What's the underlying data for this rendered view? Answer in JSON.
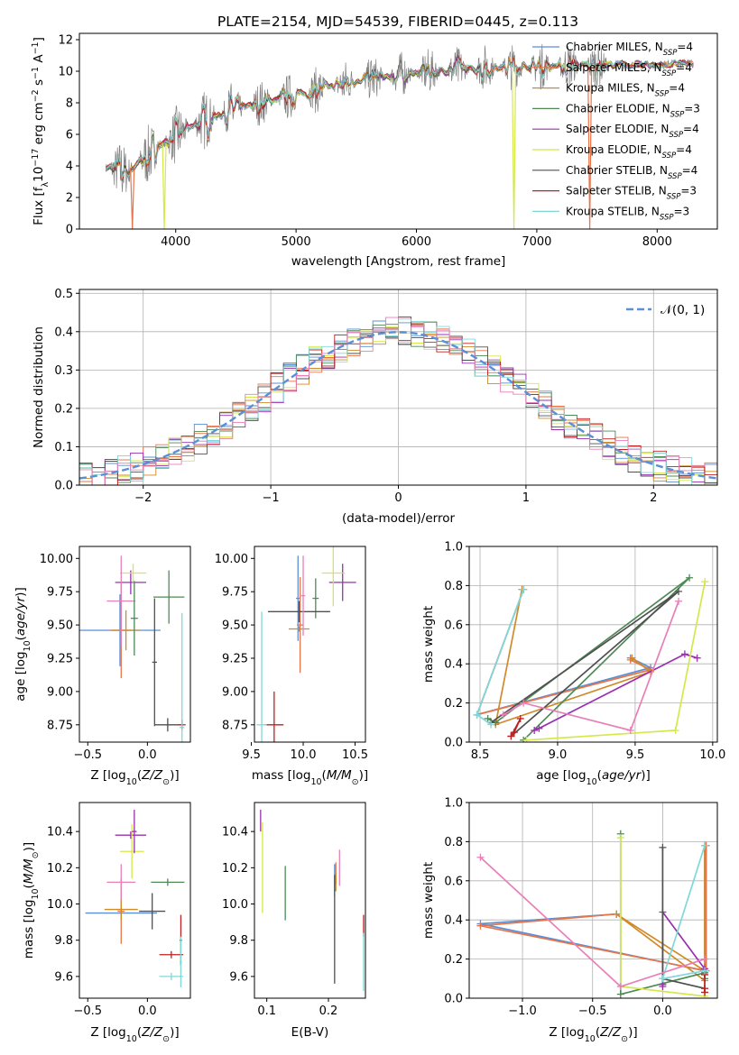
{
  "figure": {
    "title": "PLATE=2154, MJD=54539, FIBERID=0445, z=0.113",
    "models": [
      {
        "name": "Chabrier MILES, N$_{SSP}$=4",
        "label": "Chabrier MILES, N",
        "n": "=4",
        "color": "#5b8fd6"
      },
      {
        "name": "Salpeter MILES, N$_{SSP}$=4",
        "label": "Salpeter MILES, N",
        "n": "=4",
        "color": "#e8744a"
      },
      {
        "name": "Kroupa MILES, N$_{SSP}$=4",
        "label": "Kroupa MILES, N",
        "n": "=4",
        "color": "#d08a2a"
      },
      {
        "name": "Chabrier ELODIE, N$_{SSP}$=3",
        "label": "Chabrier ELODIE, N",
        "n": "=3",
        "color": "#4e8a56"
      },
      {
        "name": "Salpeter ELODIE, N$_{SSP}$=4",
        "label": "Salpeter ELODIE, N",
        "n": "=4",
        "color": "#9a30b0"
      },
      {
        "name": "Kroupa ELODIE, N$_{SSP}$=4",
        "label": "Kroupa ELODIE, N",
        "n": "=4",
        "color": "#d4e84a"
      },
      {
        "name": "Chabrier STELIB, N$_{SSP}$=4",
        "label": "Chabrier STELIB, N",
        "n": "=4",
        "color": "#505050"
      },
      {
        "name": "Salpeter STELIB, N$_{SSP}$=3",
        "label": "Salpeter STELIB, N",
        "n": "=3",
        "color": "#c02020"
      },
      {
        "name": "Kroupa STELIB, N$_{SSP}$=3",
        "label": "Kroupa STELIB, N",
        "n": "=3",
        "color": "#80d8d8"
      }
    ],
    "ssp_sub": "SSP",
    "extra_colors": {
      "pink": "#e87fb8",
      "data": "#808080",
      "gauss": "#5b8fd6"
    }
  },
  "chart_data": [
    {
      "id": "spectrum",
      "type": "line",
      "xlabel": "wavelength [Angstrom, rest frame]",
      "ylabel": "Flux [f$_\\lambda$10$^{-17}$ erg cm$^{-2}$ s$^{-1}$ A$^{-1}$]",
      "ylabel_parts": [
        "Flux [f",
        "λ",
        "10",
        "−17",
        " erg cm",
        "−2",
        " s",
        "−1",
        " A",
        "−1",
        "]"
      ],
      "xlim": [
        3200,
        8500
      ],
      "ylim": [
        0,
        12.4
      ],
      "xticks": [
        4000,
        5000,
        6000,
        7000,
        8000
      ],
      "yticks": [
        0,
        2,
        4,
        6,
        8,
        10,
        12
      ],
      "data_range": [
        3420,
        8300
      ],
      "continuum_knots": [
        [
          3420,
          3.9
        ],
        [
          3600,
          3.6
        ],
        [
          3700,
          4.2
        ],
        [
          3850,
          5.2
        ],
        [
          4000,
          5.9
        ],
        [
          4200,
          6.8
        ],
        [
          4500,
          7.6
        ],
        [
          5000,
          8.5
        ],
        [
          5500,
          9.4
        ],
        [
          6000,
          9.9
        ],
        [
          6500,
          10.2
        ],
        [
          7000,
          10.3
        ],
        [
          7500,
          10.4
        ],
        [
          8000,
          10.4
        ],
        [
          8300,
          10.5
        ]
      ],
      "noise": {
        "base": 0.7,
        "scale": 0.55,
        "quiet_above": 7600,
        "quiet_noise": 0.25
      },
      "dips": [
        {
          "x": 3640,
          "model": 1,
          "depth_to": 0
        },
        {
          "x": 3905,
          "model": 5,
          "depth_to": 0
        },
        {
          "x": 6810,
          "model": 5,
          "depth_to": 0
        },
        {
          "x": 7440,
          "model": 1,
          "depth_to": 0
        }
      ],
      "legend_position": "upper right"
    },
    {
      "id": "residuals",
      "type": "step",
      "xlabel": "(data-model)/error",
      "ylabel": "Normed distribution",
      "xlim": [
        -2.5,
        2.5
      ],
      "ylim": [
        0,
        0.51
      ],
      "xticks": [
        -2,
        -1,
        0,
        1,
        2
      ],
      "yticks": [
        0.0,
        0.1,
        0.2,
        0.3,
        0.4,
        0.5
      ],
      "bin_width": 0.1,
      "legend": [
        "$\\mathcal{N}(0,1)$"
      ],
      "legend_label": "𝒩(0, 1)",
      "legend_position": "upper right",
      "histogram_model": "standard normal with per-model scatter up to ±0.04",
      "grid": true
    },
    {
      "id": "age_vs_Z",
      "type": "scatter",
      "xlabel": "Z [log$_{10}$(Z/Z$_\\odot$)]",
      "ylabel": "age  [log$_{10}$(age/yr)]",
      "xlim": [
        -0.57,
        0.36
      ],
      "ylim": [
        8.62,
        10.09
      ],
      "xticks": [
        -0.5,
        0.0
      ],
      "yticks": [
        8.75,
        9.0,
        9.25,
        9.5,
        9.75,
        10.0
      ],
      "points": [
        {
          "m": 0,
          "x": -0.23,
          "y": 9.46,
          "ex": 0.34,
          "ey": 0.27
        },
        {
          "m": 1,
          "x": -0.22,
          "y": 9.46,
          "ex": 0.09,
          "ey": 0.36
        },
        {
          "m": 2,
          "x": -0.18,
          "y": 9.46,
          "ex": 0.12,
          "ey": 0.15
        },
        {
          "m": 3,
          "x": 0.18,
          "y": 9.71,
          "ex": 0.13,
          "ey": 0.2
        },
        {
          "m": 4,
          "x": -0.14,
          "y": 9.82,
          "ex": 0.13,
          "ey": 0.09
        },
        {
          "m": 5,
          "x": -0.12,
          "y": 9.89,
          "ex": 0.11,
          "ey": 0.07
        },
        {
          "m": 6,
          "x": 0.17,
          "y": 8.75,
          "ex": 0.11,
          "ey": 0.05
        },
        {
          "m": 7,
          "x": 0.29,
          "y": 8.75,
          "ex": 0.03,
          "ey": 0.04
        },
        {
          "m": 8,
          "x": 0.29,
          "y": 8.73,
          "ex": 0.02,
          "ey": 0.86
        },
        {
          "m": "pink",
          "x": -0.22,
          "y": 9.68,
          "ex": 0.12,
          "ey": 0.34
        },
        {
          "m": 3,
          "x": -0.11,
          "y": 9.55,
          "ex": 0.03,
          "ey": 0.28
        },
        {
          "m": 6,
          "x": 0.06,
          "y": 9.22,
          "ex": 0.02,
          "ey": 0.48
        }
      ]
    },
    {
      "id": "age_vs_mass",
      "type": "scatter",
      "xlabel": "mass [log$_{10}$(M/M$_\\odot$)]",
      "ylabel": "",
      "xlim": [
        9.53,
        10.6
      ],
      "ylim": [
        8.62,
        10.09
      ],
      "xticks": [
        9.5,
        10.0,
        10.5
      ],
      "yticks": [
        8.75,
        9.0,
        9.25,
        9.5,
        9.75,
        10.0
      ],
      "points": [
        {
          "m": 0,
          "x": 9.95,
          "y": 9.7,
          "ex": 0.02,
          "ey": 0.32
        },
        {
          "m": 1,
          "x": 9.97,
          "y": 9.5,
          "ex": 0.03,
          "ey": 0.36
        },
        {
          "m": 2,
          "x": 9.96,
          "y": 9.47,
          "ex": 0.1,
          "ey": 0.02
        },
        {
          "m": 3,
          "x": 10.12,
          "y": 9.7,
          "ex": 0.03,
          "ey": 0.15
        },
        {
          "m": 4,
          "x": 10.38,
          "y": 9.82,
          "ex": 0.13,
          "ey": 0.14
        },
        {
          "m": 5,
          "x": 10.29,
          "y": 9.89,
          "ex": 0.11,
          "ey": 0.25
        },
        {
          "m": 6,
          "x": 9.96,
          "y": 9.6,
          "ex": 0.3,
          "ey": 0.08
        },
        {
          "m": 7,
          "x": 9.72,
          "y": 8.75,
          "ex": 0.09,
          "ey": 0.25
        },
        {
          "m": 8,
          "x": 9.6,
          "y": 8.75,
          "ex": 0.05,
          "ey": 0.85
        },
        {
          "m": "pink",
          "x": 10.0,
          "y": 9.72,
          "ex": 0.02,
          "ey": 0.3
        }
      ]
    },
    {
      "id": "mass_weight_vs_age",
      "type": "line",
      "xlabel": "age  [log$_{10}$(age/yr)]",
      "ylabel": "mass weight",
      "xlim": [
        8.43,
        10.03
      ],
      "ylim": [
        0.0,
        1.0
      ],
      "xticks": [
        8.5,
        9.0,
        9.5,
        10.0
      ],
      "yticks": [
        0.0,
        0.2,
        0.4,
        0.6,
        0.8,
        1.0
      ],
      "grid": true,
      "series": [
        {
          "m": 0,
          "x": [
            8.78,
            8.48,
            9.6,
            9.47
          ],
          "y": [
            0.78,
            0.14,
            0.38,
            0.43
          ]
        },
        {
          "m": 1,
          "x": [
            8.78,
            8.48,
            9.6,
            9.47
          ],
          "y": [
            0.78,
            0.14,
            0.37,
            0.42
          ]
        },
        {
          "m": 2,
          "x": [
            8.77,
            8.6,
            9.6,
            9.48
          ],
          "y": [
            0.78,
            0.09,
            0.36,
            0.43
          ]
        },
        {
          "m": 3,
          "x": [
            8.78,
            9.85,
            8.6,
            8.55
          ],
          "y": [
            0.01,
            0.84,
            0.1,
            0.12
          ]
        },
        {
          "m": 4,
          "x": [
            9.9,
            9.82,
            8.88,
            8.85
          ],
          "y": [
            0.43,
            0.45,
            0.07,
            0.06
          ]
        },
        {
          "m": 5,
          "x": [
            8.8,
            9.76,
            9.95
          ],
          "y": [
            0.01,
            0.06,
            0.82
          ]
        },
        {
          "m": 6,
          "x": [
            8.7,
            9.78,
            8.57
          ],
          "y": [
            0.03,
            0.77,
            0.1
          ]
        },
        {
          "m": 7,
          "x": [
            8.7,
            8.76,
            8.72
          ],
          "y": [
            0.03,
            0.12,
            0.05
          ]
        },
        {
          "m": 8,
          "x": [
            8.78,
            8.48,
            8.57
          ],
          "y": [
            0.78,
            0.14,
            0.09
          ]
        },
        {
          "m": "pink",
          "x": [
            9.78,
            9.47,
            8.78,
            8.65
          ],
          "y": [
            0.72,
            0.06,
            0.2,
            0.14
          ]
        }
      ]
    },
    {
      "id": "mass_vs_Z",
      "type": "scatter",
      "xlabel": "Z [log$_{10}$(Z/Z$_\\odot$)]",
      "ylabel": "mass [log$_{10}$(M/M$_\\odot$)]",
      "xlim": [
        -0.57,
        0.36
      ],
      "ylim": [
        9.48,
        10.56
      ],
      "xticks": [
        -0.5,
        0.0
      ],
      "yticks": [
        9.6,
        9.8,
        10.0,
        10.2,
        10.4
      ],
      "points": [
        {
          "m": 0,
          "x": -0.22,
          "y": 9.95,
          "ex": 0.3,
          "ey": 0.02
        },
        {
          "m": 1,
          "x": -0.22,
          "y": 9.96,
          "ex": 0.03,
          "ey": 0.18
        },
        {
          "m": 2,
          "x": -0.22,
          "y": 9.97,
          "ex": 0.14,
          "ey": 0.06
        },
        {
          "m": 3,
          "x": 0.17,
          "y": 10.12,
          "ex": 0.14,
          "ey": 0.02
        },
        {
          "m": 4,
          "x": -0.14,
          "y": 10.38,
          "ex": 0.13,
          "ey": 0.02
        },
        {
          "m": 5,
          "x": -0.13,
          "y": 10.29,
          "ex": 0.1,
          "ey": 0.15
        },
        {
          "m": 6,
          "x": 0.04,
          "y": 9.96,
          "ex": 0.11,
          "ey": 0.1
        },
        {
          "m": 7,
          "x": 0.2,
          "y": 9.72,
          "ex": 0.1,
          "ey": 0.02
        },
        {
          "m": 8,
          "x": 0.2,
          "y": 9.6,
          "ex": 0.1,
          "ey": 0.02
        },
        {
          "m": "pink",
          "x": -0.22,
          "y": 10.12,
          "ex": 0.12,
          "ey": 0.1
        },
        {
          "m": 4,
          "x": -0.11,
          "y": 10.4,
          "ex": 0.02,
          "ey": 0.12
        },
        {
          "m": 7,
          "x": 0.28,
          "y": 9.8,
          "ex": 0.01,
          "ey": 0.14
        },
        {
          "m": 8,
          "x": 0.28,
          "y": 9.68,
          "ex": 0.01,
          "ey": 0.14
        }
      ]
    },
    {
      "id": "mass_vs_ebv",
      "type": "scatter",
      "xlabel": "E(B-V)",
      "ylabel": "",
      "xlim": [
        0.08,
        0.26
      ],
      "ylim": [
        9.48,
        10.56
      ],
      "xticks": [
        0.1,
        0.2
      ],
      "yticks": [
        9.6,
        9.8,
        10.0,
        10.2,
        10.4
      ],
      "points": [
        {
          "m": 0,
          "x": 0.21,
          "y": 10.13,
          "ey": 0.09
        },
        {
          "m": 1,
          "x": 0.212,
          "y": 10.17,
          "ey": 0.06
        },
        {
          "m": 2,
          "x": 0.212,
          "y": 10.12,
          "ey": 0.05
        },
        {
          "m": 3,
          "x": 0.13,
          "y": 10.06,
          "ey": 0.15
        },
        {
          "m": 4,
          "x": 0.09,
          "y": 10.46,
          "ey": 0.06
        },
        {
          "m": 5,
          "x": 0.093,
          "y": 10.2,
          "ey": 0.25
        },
        {
          "m": 6,
          "x": 0.21,
          "y": 9.86,
          "ey": 0.3
        },
        {
          "m": 7,
          "x": 0.257,
          "y": 9.88,
          "ey": 0.06
        },
        {
          "m": 8,
          "x": 0.257,
          "y": 9.68,
          "ey": 0.16
        },
        {
          "m": "pink",
          "x": 0.218,
          "y": 10.2,
          "ey": 0.1
        }
      ]
    },
    {
      "id": "mass_weight_vs_Z",
      "type": "line",
      "xlabel": "Z [log$_{10}$(Z/Z$_\\odot$)]",
      "ylabel": "mass weight",
      "xlim": [
        -1.38,
        0.39
      ],
      "ylim": [
        0.0,
        1.0
      ],
      "xticks": [
        -1.0,
        -0.5,
        0.0
      ],
      "yticks": [
        0.0,
        0.2,
        0.4,
        0.6,
        0.8,
        1.0
      ],
      "grid": true,
      "series": [
        {
          "m": 0,
          "x": [
            0.3,
            0.3,
            -1.3,
            -0.33
          ],
          "y": [
            0.78,
            0.14,
            0.38,
            0.43
          ]
        },
        {
          "m": 1,
          "x": [
            0.31,
            0.31,
            -1.3,
            -0.33
          ],
          "y": [
            0.78,
            0.14,
            0.37,
            0.43
          ]
        },
        {
          "m": 2,
          "x": [
            0.3,
            0.3,
            -0.33,
            0.3
          ],
          "y": [
            0.78,
            0.09,
            0.43,
            0.14
          ]
        },
        {
          "m": 3,
          "x": [
            -0.3,
            -0.3,
            0.3,
            0.3
          ],
          "y": [
            0.84,
            0.02,
            0.13,
            0.1
          ]
        },
        {
          "m": 4,
          "x": [
            0.3,
            0.0,
            0.0,
            0.0
          ],
          "y": [
            0.15,
            0.44,
            0.07,
            0.06
          ]
        },
        {
          "m": 5,
          "x": [
            -0.3,
            -0.3,
            0.3
          ],
          "y": [
            0.82,
            0.06,
            0.01
          ]
        },
        {
          "m": 6,
          "x": [
            0.0,
            0.0,
            0.3,
            0.3
          ],
          "y": [
            0.77,
            0.1,
            0.05,
            0.03
          ]
        },
        {
          "m": 7,
          "x": [
            0.3,
            0.3,
            0.3
          ],
          "y": [
            0.05,
            0.12,
            0.03
          ]
        },
        {
          "m": 8,
          "x": [
            0.3,
            0.0,
            0.3
          ],
          "y": [
            0.78,
            0.1,
            0.14
          ]
        },
        {
          "m": "pink",
          "x": [
            -1.3,
            -0.3,
            0.3
          ],
          "y": [
            0.72,
            0.06,
            0.2
          ]
        }
      ]
    }
  ]
}
